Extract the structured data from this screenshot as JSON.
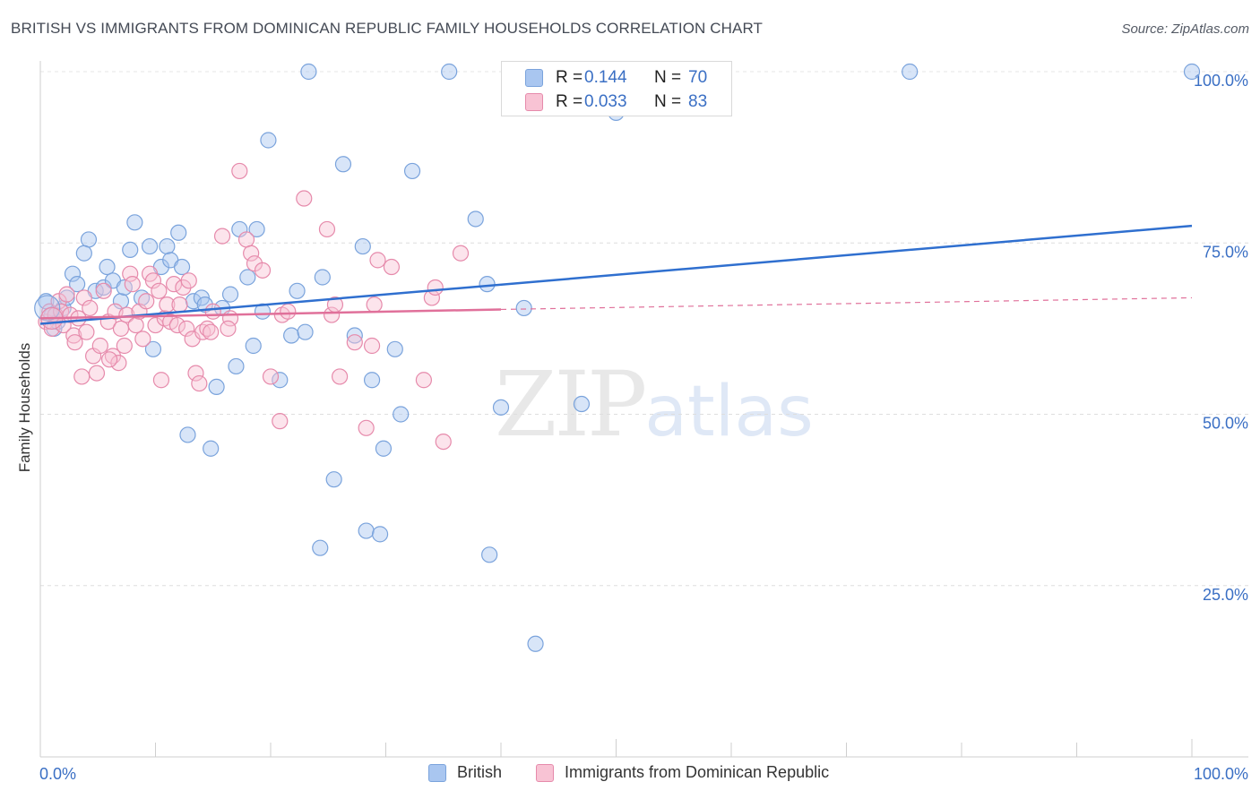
{
  "title": "BRITISH VS IMMIGRANTS FROM DOMINICAN REPUBLIC FAMILY HOUSEHOLDS CORRELATION CHART",
  "source": "Source: ZipAtlas.com",
  "watermark": {
    "part1": "ZIP",
    "part2": "atlas"
  },
  "stats": [
    {
      "r_label": "R =",
      "r_value": "0.144",
      "n_label": "N =",
      "n_value": "70",
      "color": "#a9c6f0",
      "border": "#7aa3dc"
    },
    {
      "r_label": "R =",
      "r_value": "0.033",
      "n_label": "N =",
      "n_value": "83",
      "color": "#f8c3d4",
      "border": "#e68aab"
    }
  ],
  "legend": [
    {
      "label": "British",
      "color": "#a9c6f0",
      "border": "#7aa3dc"
    },
    {
      "label": "Immigrants from Dominican Republic",
      "color": "#f8c3d4",
      "border": "#e68aab"
    }
  ],
  "chart_data": {
    "type": "scatter",
    "title": "BRITISH VS IMMIGRANTS FROM DOMINICAN REPUBLIC FAMILY HOUSEHOLDS CORRELATION CHART",
    "xlabel": "",
    "ylabel": "Family Households",
    "xlim": [
      0,
      100
    ],
    "ylim": [
      0,
      102
    ],
    "x_tick_labels": [
      {
        "value": 0,
        "label": "0.0%"
      },
      {
        "value": 100,
        "label": "100.0%"
      }
    ],
    "y_ticks": [
      {
        "value": 25,
        "label": "25.0%"
      },
      {
        "value": 50,
        "label": "50.0%"
      },
      {
        "value": 75,
        "label": "75.0%"
      },
      {
        "value": 100,
        "label": "100.0%"
      }
    ],
    "grid": true,
    "series": [
      {
        "name": "British",
        "color": "#7aa3dc",
        "fill": "rgba(169,198,240,0.45)",
        "trend": {
          "x": [
            0,
            100
          ],
          "y": [
            63.2,
            77.5
          ],
          "color": "#2f6fcf",
          "dashed_from": null
        },
        "points": [
          [
            0.5,
            66.5
          ],
          [
            1.0,
            64.5
          ],
          [
            1.2,
            62.5
          ],
          [
            1.5,
            63.5
          ],
          [
            2.0,
            65.5
          ],
          [
            2.3,
            67.0
          ],
          [
            2.8,
            70.5
          ],
          [
            3.2,
            69.0
          ],
          [
            4.2,
            75.5
          ],
          [
            3.8,
            73.5
          ],
          [
            4.8,
            68.0
          ],
          [
            5.5,
            68.5
          ],
          [
            5.8,
            71.5
          ],
          [
            6.3,
            69.5
          ],
          [
            7.0,
            66.5
          ],
          [
            7.3,
            68.5
          ],
          [
            7.8,
            74.0
          ],
          [
            8.2,
            78.0
          ],
          [
            8.8,
            67.0
          ],
          [
            9.5,
            74.5
          ],
          [
            9.8,
            59.5
          ],
          [
            10.5,
            71.5
          ],
          [
            11.0,
            74.5
          ],
          [
            11.3,
            72.5
          ],
          [
            12.0,
            76.5
          ],
          [
            12.3,
            71.5
          ],
          [
            12.8,
            47.0
          ],
          [
            13.3,
            66.5
          ],
          [
            14.0,
            67.0
          ],
          [
            14.3,
            66.0
          ],
          [
            14.8,
            45.0
          ],
          [
            15.3,
            54.0
          ],
          [
            15.8,
            65.5
          ],
          [
            16.5,
            67.5
          ],
          [
            17.0,
            57.0
          ],
          [
            17.3,
            77.0
          ],
          [
            18.0,
            70.0
          ],
          [
            18.5,
            60.0
          ],
          [
            18.8,
            77.0
          ],
          [
            19.3,
            65.0
          ],
          [
            19.8,
            90.0
          ],
          [
            20.8,
            55.0
          ],
          [
            21.8,
            61.5
          ],
          [
            22.3,
            68.0
          ],
          [
            23.0,
            62.0
          ],
          [
            23.3,
            100.0
          ],
          [
            24.3,
            30.5
          ],
          [
            24.5,
            70.0
          ],
          [
            25.5,
            40.5
          ],
          [
            26.3,
            86.5
          ],
          [
            27.3,
            61.5
          ],
          [
            28.0,
            74.5
          ],
          [
            28.3,
            33.0
          ],
          [
            28.8,
            55.0
          ],
          [
            29.5,
            32.5
          ],
          [
            29.8,
            45.0
          ],
          [
            30.8,
            59.5
          ],
          [
            31.3,
            50.0
          ],
          [
            32.3,
            85.5
          ],
          [
            35.5,
            100.0
          ],
          [
            37.8,
            78.5
          ],
          [
            38.8,
            69.0
          ],
          [
            39.0,
            29.5
          ],
          [
            40.0,
            51.0
          ],
          [
            42.0,
            65.5
          ],
          [
            43.0,
            16.5
          ],
          [
            47.0,
            51.5
          ],
          [
            50.0,
            94.0
          ],
          [
            75.5,
            100.0
          ],
          [
            100.0,
            100.0
          ]
        ]
      },
      {
        "name": "Immigrants from Dominican Republic",
        "color": "#e68aab",
        "fill": "rgba(248,195,212,0.45)",
        "trend": {
          "x": [
            0,
            40,
            100
          ],
          "y": [
            64.0,
            65.3,
            67.0
          ],
          "color": "#e0709a",
          "dashed_from": 40
        },
        "points": [
          [
            0.5,
            63.5
          ],
          [
            0.8,
            65.0
          ],
          [
            1.0,
            62.5
          ],
          [
            1.3,
            64.5
          ],
          [
            1.6,
            66.5
          ],
          [
            1.8,
            65.0
          ],
          [
            2.0,
            63.0
          ],
          [
            2.3,
            67.5
          ],
          [
            2.6,
            64.5
          ],
          [
            2.9,
            61.5
          ],
          [
            3.3,
            64.0
          ],
          [
            3.6,
            55.5
          ],
          [
            3.8,
            67.0
          ],
          [
            4.0,
            62.0
          ],
          [
            4.3,
            65.5
          ],
          [
            4.6,
            58.5
          ],
          [
            4.9,
            56.0
          ],
          [
            5.2,
            60.0
          ],
          [
            5.5,
            68.0
          ],
          [
            5.9,
            63.5
          ],
          [
            6.3,
            58.5
          ],
          [
            6.5,
            65.0
          ],
          [
            6.8,
            57.5
          ],
          [
            7.0,
            62.5
          ],
          [
            7.3,
            60.0
          ],
          [
            7.5,
            64.5
          ],
          [
            7.8,
            70.5
          ],
          [
            8.0,
            69.0
          ],
          [
            8.3,
            63.0
          ],
          [
            8.6,
            65.0
          ],
          [
            8.9,
            61.0
          ],
          [
            9.2,
            66.5
          ],
          [
            9.5,
            70.5
          ],
          [
            9.8,
            69.5
          ],
          [
            10.0,
            63.0
          ],
          [
            10.3,
            68.0
          ],
          [
            10.5,
            55.0
          ],
          [
            10.8,
            64.0
          ],
          [
            11.0,
            66.0
          ],
          [
            11.3,
            63.5
          ],
          [
            11.6,
            69.0
          ],
          [
            11.9,
            63.0
          ],
          [
            12.1,
            66.0
          ],
          [
            12.4,
            68.5
          ],
          [
            12.7,
            62.5
          ],
          [
            12.9,
            69.5
          ],
          [
            13.2,
            61.0
          ],
          [
            13.5,
            56.0
          ],
          [
            13.8,
            54.5
          ],
          [
            14.1,
            62.0
          ],
          [
            14.5,
            62.5
          ],
          [
            15.0,
            65.0
          ],
          [
            15.8,
            76.0
          ],
          [
            16.5,
            64.0
          ],
          [
            17.3,
            85.5
          ],
          [
            17.9,
            75.5
          ],
          [
            18.3,
            73.5
          ],
          [
            18.6,
            72.0
          ],
          [
            19.3,
            71.0
          ],
          [
            20.0,
            55.5
          ],
          [
            20.8,
            49.0
          ],
          [
            21.0,
            64.5
          ],
          [
            21.5,
            65.0
          ],
          [
            22.9,
            81.5
          ],
          [
            24.9,
            77.0
          ],
          [
            25.3,
            64.5
          ],
          [
            25.6,
            66.0
          ],
          [
            26.0,
            55.5
          ],
          [
            27.3,
            60.5
          ],
          [
            28.3,
            48.0
          ],
          [
            28.8,
            60.0
          ],
          [
            29.0,
            66.0
          ],
          [
            29.3,
            72.5
          ],
          [
            30.5,
            71.5
          ],
          [
            33.3,
            55.0
          ],
          [
            34.0,
            67.0
          ],
          [
            34.3,
            68.5
          ],
          [
            35.0,
            46.0
          ],
          [
            36.5,
            73.5
          ],
          [
            14.8,
            62.0
          ],
          [
            16.3,
            62.5
          ],
          [
            6.0,
            58.0
          ],
          [
            3.0,
            60.5
          ]
        ]
      }
    ]
  }
}
